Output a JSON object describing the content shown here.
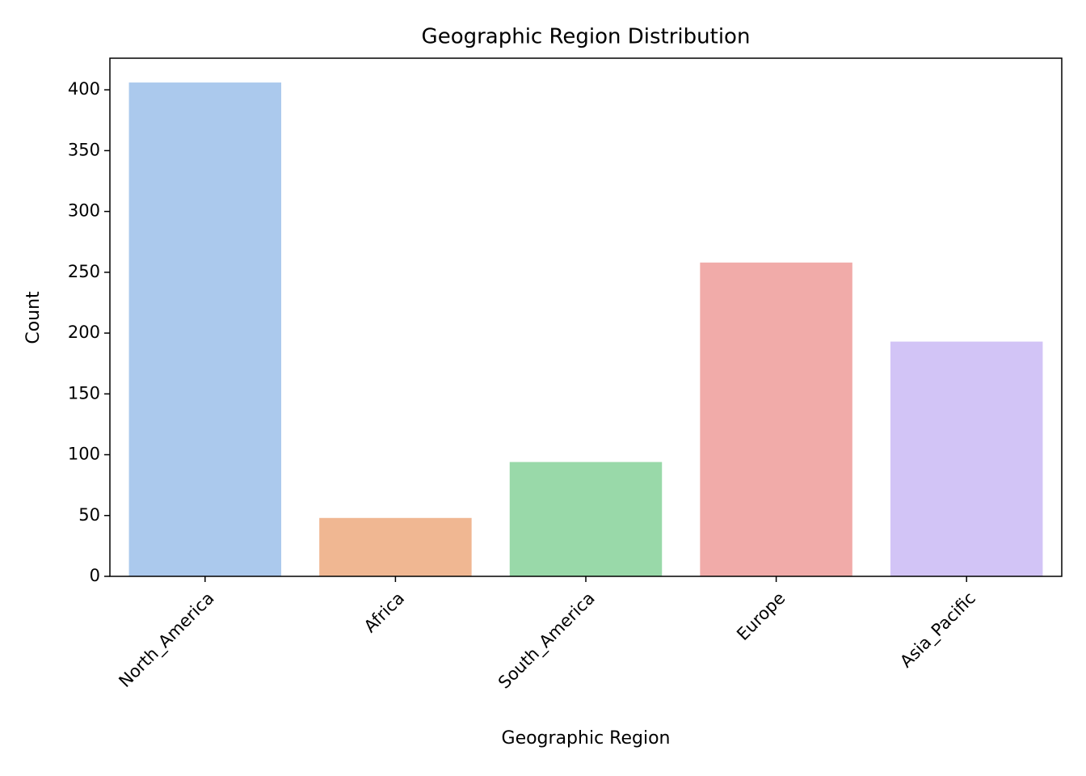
{
  "chart_data": {
    "type": "bar",
    "title": "Geographic Region Distribution",
    "x_label": "Geographic Region",
    "y_label": "Count",
    "categories": [
      "North_America",
      "Africa",
      "South_America",
      "Europe",
      "Asia_Pacific"
    ],
    "values": [
      406,
      48,
      94,
      258,
      193
    ],
    "colors": [
      "#abc9ed",
      "#f0b792",
      "#99d9a9",
      "#f1aba9",
      "#d2c4f6"
    ],
    "ylim": [
      0,
      426
    ],
    "yticks": [
      0,
      50,
      100,
      150,
      200,
      250,
      300,
      350,
      400
    ],
    "grid": false
  }
}
